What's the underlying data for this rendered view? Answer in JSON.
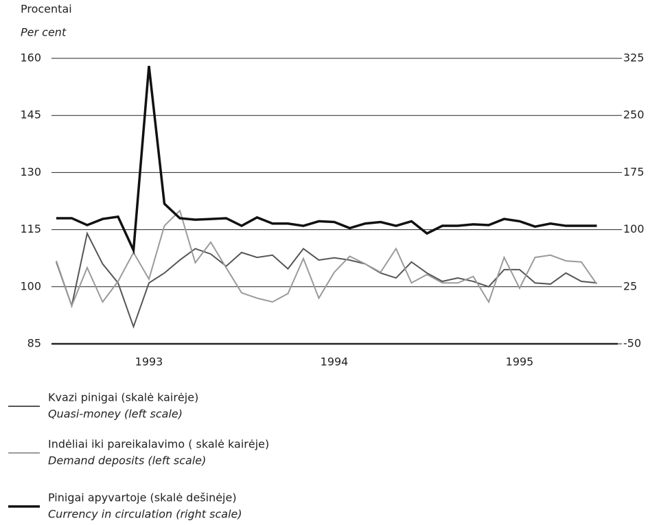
{
  "chart_data": {
    "type": "line",
    "ylabel": "Procentai",
    "ylabel_en": "Per cent",
    "categories": [
      null,
      null,
      null,
      null,
      null,
      null,
      "1993",
      null,
      null,
      null,
      null,
      null,
      null,
      null,
      null,
      null,
      null,
      null,
      "1994",
      null,
      null,
      null,
      null,
      null,
      null,
      null,
      null,
      null,
      null,
      null,
      "1995",
      null,
      null,
      null,
      null,
      null
    ],
    "ylim": [
      85,
      160
    ],
    "yticks": [
      160,
      145,
      130,
      115,
      100,
      85
    ],
    "y2lim": [
      -50,
      325
    ],
    "y2ticks": [
      325,
      250,
      175,
      100,
      25,
      -50
    ],
    "grid": true,
    "series": [
      {
        "name": "Kvazi pinigai (skalė kairėje)",
        "name_en": "Quasi-money (left scale)",
        "color": "#555555",
        "width": 2,
        "values": [
          106.5,
          95,
          114,
          106,
          101,
          89.5,
          101,
          103.6,
          107,
          110,
          108.6,
          105.4,
          109,
          107.7,
          108.3,
          104.7,
          110,
          107,
          107.6,
          107,
          106,
          103.6,
          102.3,
          106.5,
          103.6,
          101.4,
          102.3,
          101.4,
          100,
          104.5,
          104.5,
          101,
          100.7,
          103.6,
          101.4,
          101
        ]
      },
      {
        "name": "Indėliai iki pareikalavimo ( skalė kairėje)",
        "name_en": "Demand deposits (left scale)",
        "color": "#9a9a9a",
        "width": 2,
        "values": [
          106.8,
          95,
          105,
          96,
          101.4,
          109,
          102,
          116,
          120,
          106.3,
          111.7,
          105,
          98.4,
          97,
          96,
          98.2,
          107.4,
          97,
          103.8,
          108,
          106,
          103.8,
          110,
          101,
          103.2,
          101,
          101,
          102.7,
          96,
          107.7,
          99.6,
          107.7,
          108.3,
          106.8,
          106.5,
          100.7
        ]
      },
      {
        "name": "Pinigai apyvartoje (skalė dešinėje)",
        "name_en": "Currency in circulation (right scale)",
        "color": "#111111",
        "width": 3.5,
        "axis": "y2",
        "values": [
          115,
          115,
          106,
          114,
          117,
          73,
          315,
          134,
          115,
          113,
          114,
          115,
          105,
          116,
          108,
          108,
          105,
          111,
          110,
          102,
          108,
          110,
          105,
          111,
          95,
          105,
          105,
          107,
          106,
          114,
          111,
          104,
          108,
          105,
          105,
          105
        ]
      }
    ]
  }
}
